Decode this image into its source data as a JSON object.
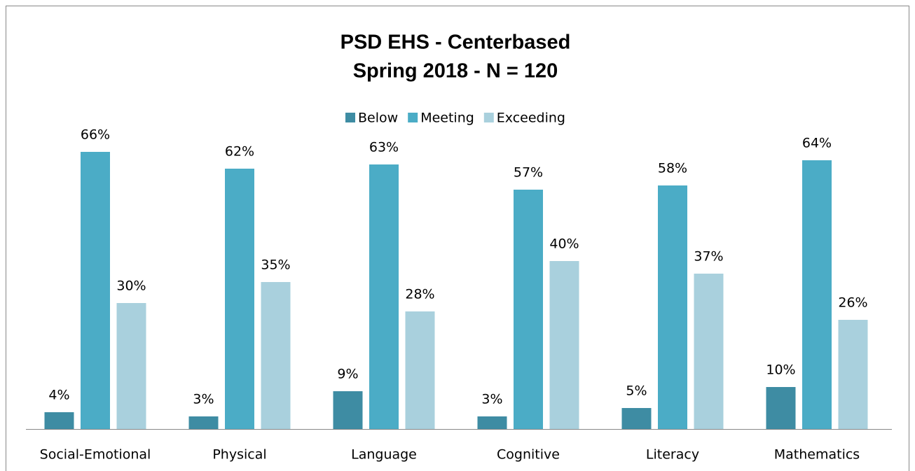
{
  "chart_data": {
    "type": "bar",
    "title": "PSD EHS - Centerbased",
    "subtitle": "Spring 2018 - N = 120",
    "categories": [
      "Social-Emotional",
      "Physical",
      "Language",
      "Cognitive",
      "Literacy",
      "Mathematics"
    ],
    "legend": "top",
    "series": [
      {
        "name": "Below",
        "color": "#3e8ca3",
        "values": [
          4,
          3,
          9,
          3,
          5,
          10
        ],
        "value_labels": [
          "4%",
          "3%",
          "9%",
          "3%",
          "5%",
          "10%"
        ]
      },
      {
        "name": "Meeting",
        "color": "#4bacc6",
        "values": [
          66,
          62,
          63,
          57,
          58,
          64
        ],
        "value_labels": [
          "66%",
          "62%",
          "63%",
          "57%",
          "58%",
          "64%"
        ]
      },
      {
        "name": "Exceeding",
        "color": "#a9d0dd",
        "values": [
          30,
          35,
          28,
          40,
          37,
          26
        ],
        "value_labels": [
          "30%",
          "35%",
          "28%",
          "40%",
          "37%",
          "26%"
        ]
      }
    ]
  }
}
